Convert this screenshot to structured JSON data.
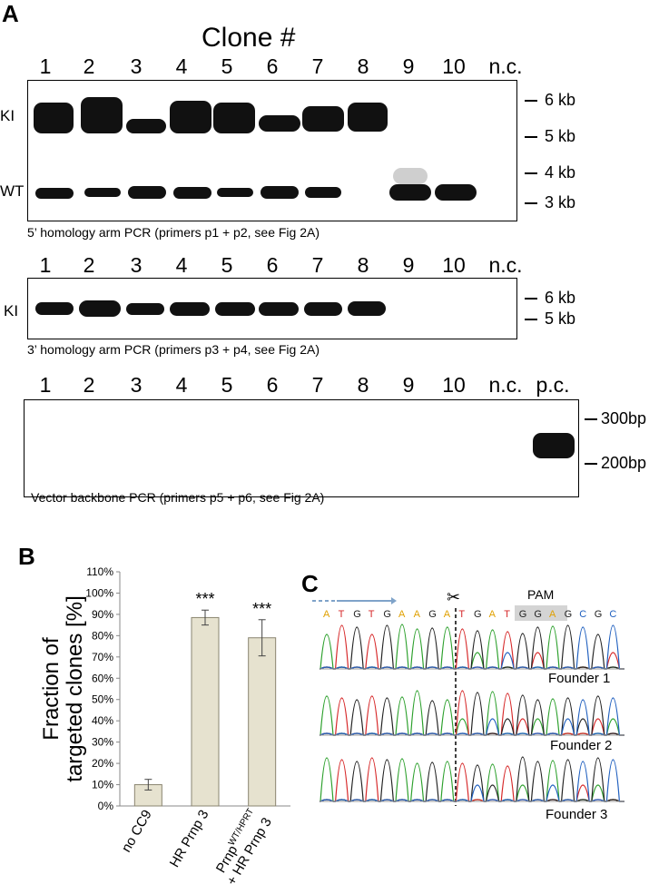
{
  "panelA": {
    "letter": "A",
    "title": "Clone #",
    "lanes": [
      "1",
      "2",
      "3",
      "4",
      "5",
      "6",
      "7",
      "8",
      "9",
      "10",
      "n.c."
    ],
    "gel1": {
      "side_labels": [
        "KI",
        "WT"
      ],
      "markers": [
        "6 kb",
        "5 kb",
        "4 kb",
        "3 kb"
      ],
      "caption": "5’ homology arm PCR (primers p1 + p2, see Fig 2A)"
    },
    "gel2": {
      "side_labels": [
        "KI"
      ],
      "markers": [
        "6 kb",
        "5 kb"
      ],
      "caption": "3’ homology arm PCR (primers p3 + p4, see Fig 2A)"
    },
    "gel3": {
      "lanes_extra": "p.c.",
      "markers": [
        "300bp",
        "200bp"
      ],
      "caption": "Vector backbone PCR (primers p5 + p6, see Fig 2A)"
    }
  },
  "panelB": {
    "letter": "B",
    "chart_data": {
      "type": "bar",
      "categories": [
        "no CC9",
        "HR Prnp 3",
        "Prnp WT/HPRT + HR Prnp 3"
      ],
      "values": [
        10,
        88.5,
        79
      ],
      "errors": [
        2.5,
        3.5,
        8.5
      ],
      "significance": [
        "",
        "***",
        "***"
      ],
      "ylabel": "Fraction of targeted clones [%]",
      "ylim": [
        0,
        110
      ],
      "yticks": [
        "0%",
        "10%",
        "20%",
        "30%",
        "40%",
        "50%",
        "60%",
        "70%",
        "80%",
        "90%",
        "100%",
        "110%"
      ],
      "bar_color": "#e6e2cf"
    },
    "xtick_labels": {
      "c1": "no CC9",
      "c2": "HR Prnp 3",
      "c3_main": "Prnp",
      "c3_sup": "WT/HPRT",
      "c3_line2": "+ HR Prnp 3"
    }
  },
  "panelC": {
    "letter": "C",
    "pam_label": "PAM",
    "scissors": "✂",
    "sequence": [
      "A",
      "T",
      "G",
      "T",
      "G",
      "A",
      "A",
      "G",
      "A",
      "T",
      "G",
      "A",
      "T",
      "G",
      "G",
      "A",
      "G",
      "C",
      "G",
      "C"
    ],
    "founders": [
      "Founder 1",
      "Founder 2",
      "Founder 3"
    ]
  }
}
